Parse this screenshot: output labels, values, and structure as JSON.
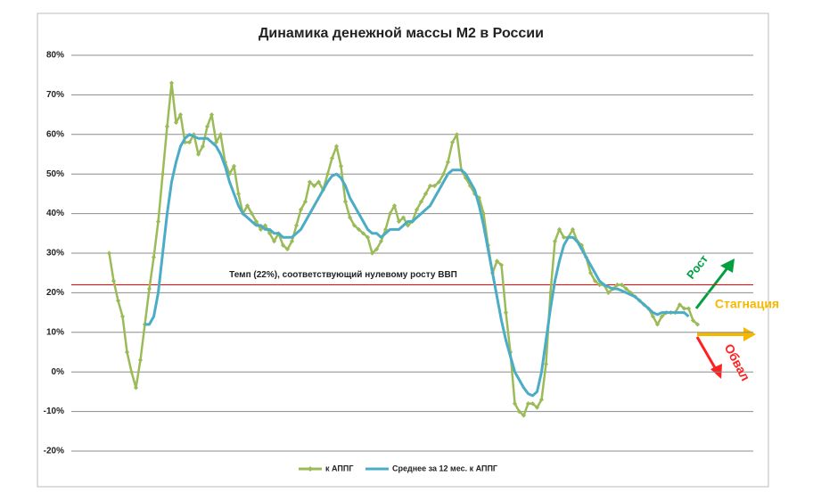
{
  "chart_data": {
    "type": "line",
    "title": "Динамика денежной массы М2 в России",
    "categories": [
      null,
      null,
      null,
      null,
      null,
      null,
      null,
      null,
      null,
      null,
      null,
      null,
      null,
      null,
      null,
      null,
      null,
      null,
      null,
      null,
      null,
      null,
      null,
      null,
      null,
      null,
      null,
      null,
      null,
      null,
      null,
      null,
      null,
      null,
      null,
      null,
      null,
      null,
      null,
      null,
      null,
      null,
      null,
      null,
      null,
      null,
      null,
      null,
      null,
      null,
      null,
      null,
      null,
      null,
      null,
      null,
      null,
      null,
      null,
      null,
      null,
      null,
      null,
      null,
      null,
      null,
      null,
      null,
      null,
      null,
      null,
      null,
      null,
      null,
      null,
      null,
      null,
      null,
      null,
      null,
      null,
      null,
      null,
      null,
      null,
      null,
      null,
      null,
      null,
      null,
      null,
      null,
      null,
      null,
      null,
      null,
      null,
      null,
      null,
      null,
      null,
      null,
      null,
      null,
      null,
      null,
      null,
      null,
      null,
      null,
      null,
      null,
      null,
      null,
      null,
      null,
      null,
      null,
      null,
      null,
      null,
      null,
      null,
      null,
      null,
      null,
      null,
      null,
      null,
      null,
      null,
      null,
      null,
      null,
      null,
      null,
      null,
      null,
      null,
      null,
      null,
      null,
      null,
      null,
      null,
      null,
      null,
      null,
      null,
      null,
      null,
      null,
      null
    ],
    "series": [
      {
        "name": "к АППГ",
        "color": "#9bbb59",
        "markers": true,
        "values": [
          null,
          null,
          null,
          null,
          null,
          null,
          null,
          null,
          30,
          23,
          18,
          14,
          5,
          0,
          -4,
          3,
          12,
          21,
          29,
          38,
          50,
          62,
          73,
          63,
          65,
          58,
          58,
          60,
          55,
          57,
          62,
          65,
          58,
          60,
          53,
          50,
          52,
          45,
          40,
          42,
          40,
          38,
          36,
          37,
          35,
          33,
          35,
          32,
          31,
          33,
          37,
          41,
          43,
          48,
          47,
          48,
          46,
          50,
          54,
          57,
          52,
          43,
          39,
          37,
          36,
          35,
          34,
          30,
          31,
          33,
          36,
          40,
          42,
          38,
          39,
          37,
          38,
          41,
          43,
          45,
          47,
          47,
          48,
          50,
          53,
          58,
          60,
          51,
          49,
          47,
          45,
          44,
          40,
          32,
          25,
          28,
          27,
          15,
          5,
          -8,
          -10,
          -11,
          -8,
          -8,
          -9,
          -7,
          2,
          20,
          33,
          36,
          34,
          34,
          36,
          33,
          32,
          29,
          25,
          23,
          22,
          22,
          20,
          21,
          22,
          22,
          21,
          20,
          19,
          18,
          17,
          16,
          14,
          12,
          14,
          15,
          15,
          15,
          17,
          16,
          16,
          13,
          12,
          null,
          null,
          null,
          null,
          null,
          null,
          null,
          null,
          null,
          null,
          null,
          null
        ]
      },
      {
        "name": "Среднее за 12 мес. к АППГ",
        "color": "#4bacc6",
        "markers": false,
        "values": [
          null,
          null,
          null,
          null,
          null,
          null,
          null,
          null,
          null,
          null,
          null,
          null,
          null,
          null,
          null,
          null,
          12,
          12,
          14,
          20,
          30,
          40,
          48,
          53,
          57,
          59,
          60,
          59.5,
          59,
          59,
          59,
          58,
          57,
          55,
          52,
          48,
          45,
          42,
          40,
          39,
          38,
          37,
          37,
          36,
          36,
          35,
          35,
          34,
          34,
          34,
          35,
          36,
          38,
          40,
          42,
          44,
          46,
          48,
          49.5,
          50,
          49,
          47,
          44,
          42,
          40,
          38,
          36,
          35,
          35,
          34,
          35,
          36,
          36,
          36,
          37,
          38,
          38,
          39,
          40,
          41,
          42,
          44,
          46,
          48,
          50,
          51,
          51,
          51,
          50,
          48,
          46,
          42,
          37,
          31,
          25,
          19,
          13,
          8,
          4,
          0,
          -2,
          -4,
          -5.5,
          -6,
          -5,
          0,
          8,
          16,
          23,
          28,
          32,
          34,
          34,
          33,
          31,
          29,
          27,
          25,
          23,
          22,
          21.5,
          21,
          21,
          20.5,
          20,
          19.5,
          19,
          18,
          17,
          16,
          15,
          14.5,
          15,
          15,
          15,
          15,
          15,
          15,
          14,
          null,
          null,
          null,
          null,
          null,
          null,
          null,
          null,
          null,
          null,
          null,
          null,
          null,
          null
        ]
      }
    ],
    "ylim": [
      -20,
      80
    ],
    "yticks": [
      {
        "value": -20,
        "label": "-20%"
      },
      {
        "value": -10,
        "label": "-10%"
      },
      {
        "value": 0,
        "label": "0%"
      },
      {
        "value": 10,
        "label": "10%"
      },
      {
        "value": 20,
        "label": "20%"
      },
      {
        "value": 30,
        "label": "30%"
      },
      {
        "value": 40,
        "label": "40%"
      },
      {
        "value": 50,
        "label": "50%"
      },
      {
        "value": 60,
        "label": "60%"
      },
      {
        "value": 70,
        "label": "70%"
      },
      {
        "value": 80,
        "label": "80%"
      }
    ],
    "grid": true,
    "legend": "bottom",
    "reference_line": {
      "value": 22,
      "label": "Темп (22%), соответствующий нулевому росту ВВП",
      "color": "#ff0000"
    },
    "annotations": [
      {
        "text": "Рост",
        "color": "#00a040"
      },
      {
        "text": "Стагнация",
        "color": "#f5b800"
      },
      {
        "text": "Обвал",
        "color": "#ff2020"
      }
    ]
  }
}
